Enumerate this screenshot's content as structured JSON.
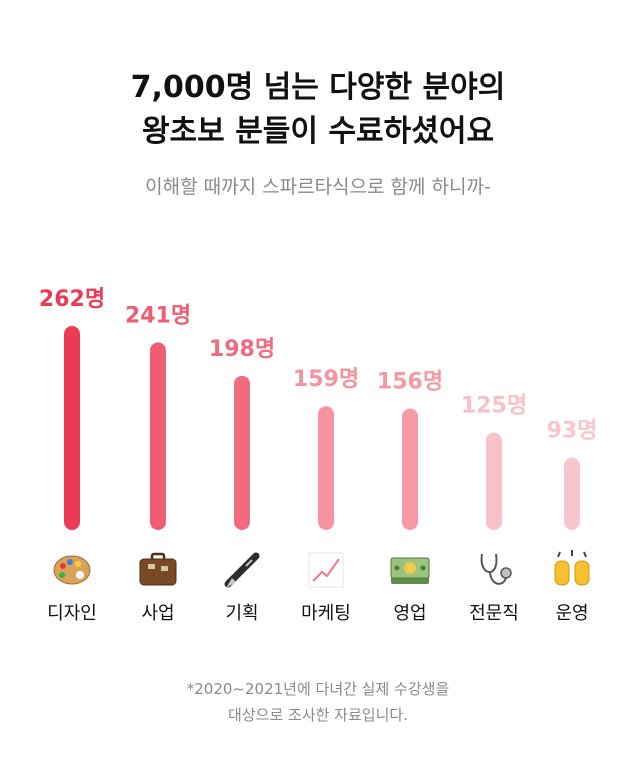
{
  "headline": {
    "line1": "7,000명 넘는 다양한 분야의",
    "line2": "왕초보 분들이 수료하셨어요"
  },
  "subtitle": "이해할 때까지 스파르타식으로 함께 하니까-",
  "chart_data": {
    "type": "bar",
    "categories": [
      "디자인",
      "사업",
      "기획",
      "마케팅",
      "영업",
      "전문직",
      "운영"
    ],
    "values": [
      262,
      241,
      198,
      159,
      156,
      125,
      93
    ],
    "value_labels": [
      "262명",
      "241명",
      "198명",
      "159명",
      "156명",
      "125명",
      "93명"
    ],
    "icons": [
      "palette-icon",
      "briefcase-icon",
      "fountain-pen-icon",
      "chart-increasing-icon",
      "money-bills-icon",
      "stethoscope-icon",
      "raising-hands-icon"
    ],
    "colors": [
      "#ec3a55",
      "#ef5d73",
      "#f26a7f",
      "#f5949f",
      "#f599a5",
      "#f8c0c7",
      "#f8c7cd"
    ],
    "ylim": [
      0,
      262
    ],
    "grid": false,
    "title": "",
    "xlabel": "",
    "ylabel": ""
  },
  "footnote": {
    "line1": "*2020~2021년에 다녀간 실제 수강생을",
    "line2": "대상으로 조사한 자료입니다."
  }
}
